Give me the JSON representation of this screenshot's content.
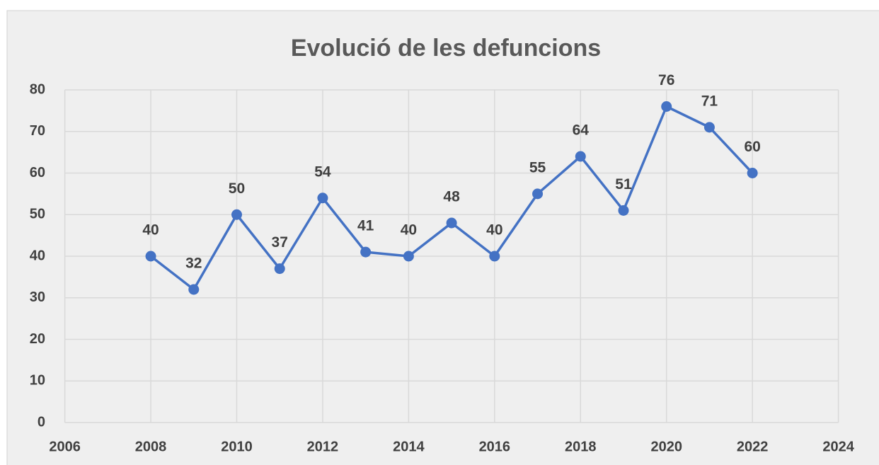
{
  "chart_data": {
    "type": "line",
    "title": "Evolució de les defuncions",
    "x": [
      2008,
      2009,
      2010,
      2011,
      2012,
      2013,
      2014,
      2015,
      2016,
      2017,
      2018,
      2019,
      2020,
      2021,
      2022
    ],
    "series": [
      {
        "color": "#4472c4",
        "values": [
          40,
          32,
          50,
          37,
          54,
          41,
          40,
          48,
          40,
          55,
          64,
          51,
          76,
          71,
          60
        ]
      }
    ],
    "xlim": [
      2006,
      2024
    ],
    "xticks": [
      2006,
      2008,
      2010,
      2012,
      2014,
      2016,
      2018,
      2020,
      2022,
      2024
    ],
    "ylim": [
      0,
      80
    ],
    "yticks": [
      0,
      10,
      20,
      30,
      40,
      50,
      60,
      70,
      80
    ],
    "grid": true
  }
}
